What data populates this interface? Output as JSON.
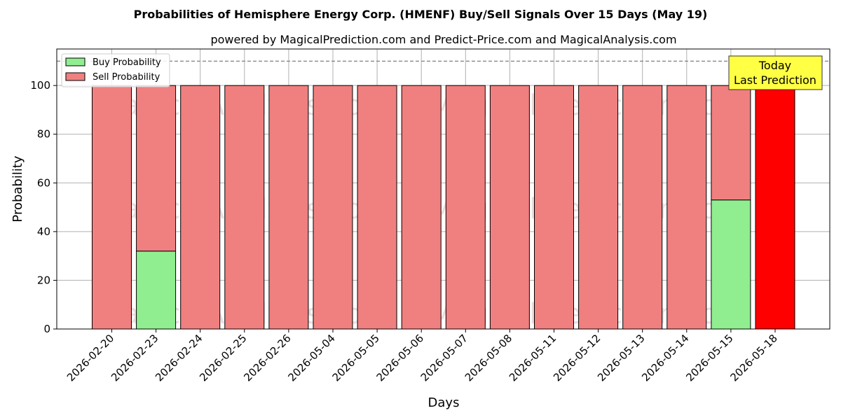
{
  "chart_data": {
    "type": "bar",
    "stacked": true,
    "title": "Probabilities of Hemisphere Energy Corp. (HMENF) Buy/Sell Signals Over 15 Days (May 19)",
    "subtitle": "powered by MagicalPrediction.com and Predict-Price.com and MagicalAnalysis.com",
    "xlabel": "Days",
    "ylabel": "Probability",
    "ylim": [
      0,
      115
    ],
    "yticks": [
      0,
      20,
      40,
      60,
      80,
      100
    ],
    "categories": [
      "2026-02-20",
      "2026-02-23",
      "2026-02-24",
      "2026-02-25",
      "2026-02-26",
      "2026-05-04",
      "2026-05-05",
      "2026-05-06",
      "2026-05-07",
      "2026-05-08",
      "2026-05-11",
      "2026-05-12",
      "2026-05-13",
      "2026-05-14",
      "2026-05-15",
      "2026-05-18"
    ],
    "series": [
      {
        "name": "Buy Probability",
        "color": "#90ee90",
        "values": [
          0,
          32,
          0,
          0,
          0,
          0,
          0,
          0,
          0,
          0,
          0,
          0,
          0,
          0,
          53,
          0
        ]
      },
      {
        "name": "Sell Probability",
        "color": "#f08080",
        "values": [
          100,
          68,
          100,
          100,
          100,
          100,
          100,
          100,
          100,
          100,
          100,
          100,
          100,
          100,
          47,
          100
        ]
      }
    ],
    "highlight": {
      "index": 15,
      "color": "#ff0000"
    },
    "reference_line": {
      "y": 110,
      "style": "dashed",
      "color": "#808080"
    },
    "annotation": {
      "lines": [
        "Today",
        "Last Prediction"
      ],
      "background": "#ffff44"
    },
    "legend": {
      "position": "top-left"
    },
    "grid": true,
    "watermarks": [
      "MagicalAnalysis.com",
      "MagicalPrediction.com"
    ]
  }
}
